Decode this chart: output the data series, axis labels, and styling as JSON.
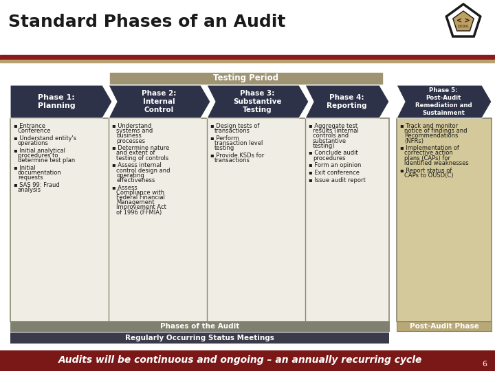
{
  "title": "Standard Phases of an Audit",
  "bg_color": "#ffffff",
  "title_color": "#1a1a1a",
  "red_bar_color": "#8b1a1a",
  "tan_bar_color": "#b8a070",
  "testing_period_bg": "#9e9474",
  "testing_period_text": "Testing Period",
  "arrow_color": "#2e3248",
  "content_bg": "#f0ede4",
  "content_border": "#888870",
  "phase5_content_bg": "#d4c99a",
  "phases_label_bg": "#808070",
  "post_audit_label_bg": "#b8a878",
  "status_bar_bg": "#3a3a4a",
  "footer_bg": "#7a1818",
  "footer_text": "Audits will be continuous and ongoing – an annually recurring cycle",
  "footer_text_color": "#ffffff",
  "page_num": "6",
  "phase1_label": "Phase 1:\nPlanning",
  "phase2_label": "Phase 2:\nInternal\nControl",
  "phase3_label": "Phase 3:\nSubstantive\nTesting",
  "phase4_label": "Phase 4:\nReporting",
  "phase5_label": "Phase 5:\nPost-Audit\nRemediation and\nSustainment",
  "phase1_bullets": [
    "Entrance\nConference",
    "Understand entity's\noperations",
    "Initial analytical\nprocedures to\ndetermine test plan",
    "Initial\ndocumentation\nrequests",
    "SAS 99: Fraud\nanalysis"
  ],
  "phase2_bullets": [
    "Understand\nsystems and\nbusiness\nprocesses",
    "Determine nature\nand extent of\ntesting of controls",
    "Assess internal\ncontrol design and\noperating\neffectiveness",
    "Assess\nCompliance with\nFederal Financial\nManagement\nImprovement Act\nof 1996 (FFMIA)"
  ],
  "phase3_bullets": [
    "Design tests of\ntransactions",
    "Perform\ntransaction level\ntesting",
    "Provide KSDs for\ntransactions"
  ],
  "phase4_bullets": [
    "Aggregate test\nresults (internal\ncontrols and\nsubstantive\ntesting)",
    "Conclude audit\nprocedures",
    "Form an opinion",
    "Exit conference",
    "Issue audit report"
  ],
  "phase5_bullets": [
    "Track and monitor\nnotice of findings and\nRecommendations\n(NFRs)",
    "Implementation of\ncorrective action\nplans (CAPs) for\nidentified weaknesses",
    "Report status of\nCAPs to OUSD(C)"
  ],
  "phases_label": "Phases of the Audit",
  "post_audit_label": "Post-Audit Phase",
  "status_meetings_label": "Regularly Occurring Status Meetings"
}
